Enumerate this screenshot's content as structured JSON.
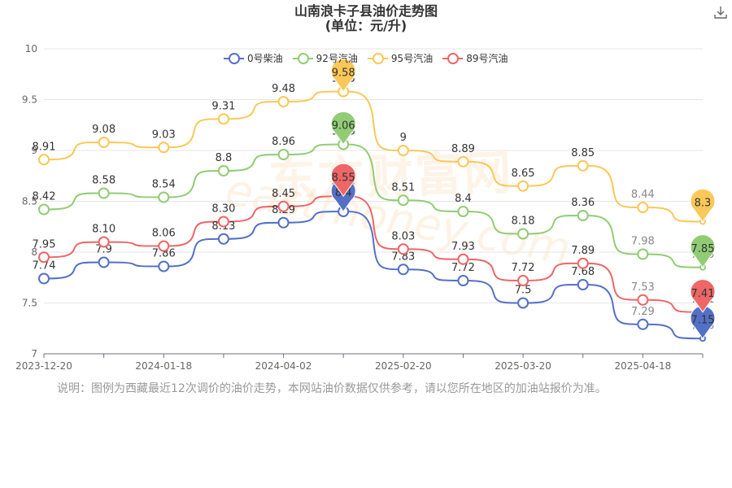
{
  "header": {
    "title_line1": "山南浪卡子县油价走势图",
    "title_line2": "(单位：元/升)",
    "download_icon": "download-icon"
  },
  "watermark": {
    "text_cn": "东方财富网",
    "text_en": "eastmoney.com"
  },
  "note": "说明：图例为西藏最近12次调价的油价走势，本网站油价数据仅供参考，请以您所在地区的加油站报价为准。",
  "chart_data": {
    "type": "line",
    "title": "山南浪卡子县油价走势图",
    "subtitle": "(单位：元/升)",
    "xlabel": "",
    "ylabel": "",
    "ylim": [
      7,
      10
    ],
    "yticks": [
      7,
      7.5,
      8,
      8.5,
      9,
      9.5,
      10
    ],
    "x_tick_labels": [
      "2023-12-20",
      "2024-01-18",
      "2024-04-02",
      "2025-02-20",
      "2025-03-20",
      "2025-04-18"
    ],
    "x_tick_indices": [
      0,
      2,
      4,
      6,
      8,
      10
    ],
    "grid": true,
    "legend_position": "top",
    "series": [
      {
        "name": "0号柴油",
        "color": "#5470c6",
        "values": [
          7.74,
          7.9,
          7.86,
          8.13,
          8.29,
          8.4,
          7.83,
          7.72,
          7.5,
          7.68,
          7.29,
          7.15
        ],
        "labels": [
          "7.74",
          "7.9",
          "7.86",
          "8.13",
          "8.29",
          "8.4",
          "7.83",
          "7.72",
          "7.5",
          "7.68",
          "7.29",
          "7.15"
        ]
      },
      {
        "name": "92号汽油",
        "color": "#91cc75",
        "values": [
          8.42,
          8.58,
          8.54,
          8.8,
          8.96,
          9.06,
          8.51,
          8.4,
          8.18,
          8.36,
          7.98,
          7.85
        ],
        "labels": [
          "8.42",
          "8.58",
          "8.54",
          "8.8",
          "8.96",
          "9.06",
          "8.51",
          "8.4",
          "8.18",
          "8.36",
          "7.98",
          "7.85"
        ]
      },
      {
        "name": "95号汽油",
        "color": "#fac858",
        "values": [
          8.91,
          9.08,
          9.03,
          9.31,
          9.48,
          9.58,
          9.0,
          8.89,
          8.65,
          8.85,
          8.44,
          8.3
        ],
        "labels": [
          "8.91",
          "9.08",
          "9.03",
          "9.31",
          "9.48",
          "9.58",
          "9",
          "8.89",
          "8.65",
          "8.85",
          "8.44",
          "8.3"
        ]
      },
      {
        "name": "89号汽油",
        "color": "#ee6666",
        "values": [
          7.95,
          8.1,
          8.06,
          8.3,
          8.45,
          8.55,
          8.03,
          7.93,
          7.72,
          7.89,
          7.53,
          7.41
        ],
        "labels": [
          "7.95",
          "8.10",
          "8.06",
          "8.30",
          "8.45",
          "8.55",
          "8.03",
          "7.93",
          "7.72",
          "7.89",
          "7.53",
          "7.41"
        ]
      }
    ],
    "markers": [
      {
        "series": 0,
        "index": 5,
        "label": "8.4"
      },
      {
        "series": 0,
        "index": 11,
        "label": "7.15"
      },
      {
        "series": 1,
        "index": 5,
        "label": "9.06"
      },
      {
        "series": 1,
        "index": 11,
        "label": "7.85"
      },
      {
        "series": 2,
        "index": 5,
        "label": "9.58"
      },
      {
        "series": 2,
        "index": 11,
        "label": "8.3"
      },
      {
        "series": 3,
        "index": 5,
        "label": "8.55"
      },
      {
        "series": 3,
        "index": 11,
        "label": "7.41"
      }
    ]
  }
}
